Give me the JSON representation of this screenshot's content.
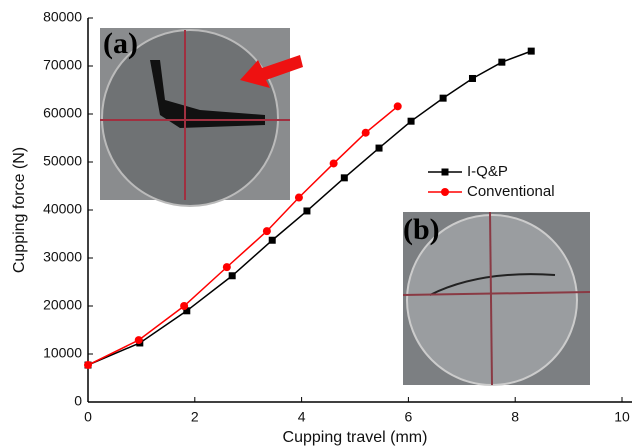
{
  "chart_data": {
    "type": "line",
    "x_label": "Cupping travel  (mm)",
    "y_label": "Cupping force  (N)",
    "xlim": [
      0,
      10
    ],
    "xticks": [
      0,
      2,
      4,
      6,
      8,
      10
    ],
    "ylim": [
      0,
      80000
    ],
    "yticks": [
      0,
      10000,
      20000,
      30000,
      40000,
      50000,
      60000,
      70000,
      80000
    ],
    "series": [
      {
        "name": "I-Q&P",
        "color": "#000000",
        "marker": "square",
        "x": [
          0,
          0.97,
          1.85,
          2.7,
          3.45,
          4.1,
          4.8,
          5.45,
          6.05,
          6.65,
          7.2,
          7.75,
          8.3
        ],
        "values": [
          7700,
          12300,
          19000,
          26300,
          33700,
          39800,
          46700,
          52900,
          58500,
          63300,
          67400,
          70800,
          73100
        ]
      },
      {
        "name": "Conventional",
        "color": "#ff0000",
        "marker": "circle",
        "x": [
          0,
          0.95,
          1.8,
          2.6,
          3.35,
          3.95,
          4.6,
          5.2,
          5.8
        ],
        "values": [
          7700,
          12900,
          20000,
          28100,
          35600,
          42600,
          49700,
          56100,
          61600
        ]
      }
    ],
    "insets": [
      {
        "label": "(a)"
      },
      {
        "label": "(b)"
      }
    ]
  }
}
